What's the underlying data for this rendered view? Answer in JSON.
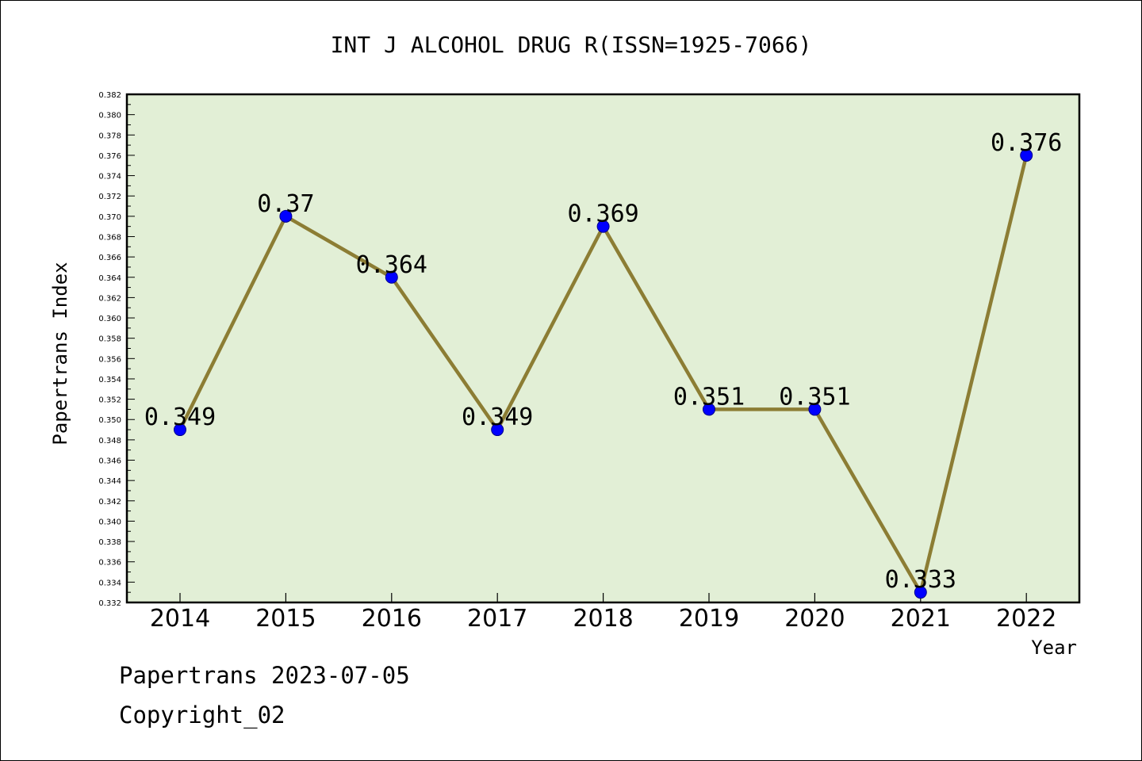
{
  "chart_data": {
    "type": "line",
    "title": "INT J ALCOHOL DRUG R(ISSN=1925-7066)",
    "xlabel": "Year",
    "ylabel": "Papertrans Index",
    "categories": [
      "2014",
      "2015",
      "2016",
      "2017",
      "2018",
      "2019",
      "2020",
      "2021",
      "2022"
    ],
    "series": [
      {
        "values": [
          0.349,
          0.37,
          0.364,
          0.349,
          0.369,
          0.351,
          0.351,
          0.333,
          0.376
        ],
        "labels": [
          "0.349",
          "0.37",
          "0.364",
          "0.349",
          "0.369",
          "0.351",
          "0.351",
          "0.333",
          "0.376"
        ]
      }
    ],
    "ylim": [
      0.332,
      0.382
    ],
    "ytick_step": 0.002,
    "ytick_labels": [
      "0.332",
      "0.334",
      "0.336",
      "0.338",
      "0.340",
      "0.342",
      "0.344",
      "0.346",
      "0.348",
      "0.350",
      "0.352",
      "0.354",
      "0.356",
      "0.358",
      "0.360",
      "0.362",
      "0.364",
      "0.366",
      "0.368",
      "0.370",
      "0.372",
      "0.374",
      "0.376",
      "0.378",
      "0.380",
      "0.382"
    ],
    "grid": false,
    "legend": "none",
    "colors": {
      "plot_background": "#e2efd6",
      "line": "#8c7d34",
      "marker": "#0000ff",
      "marker_edge": "#00008b"
    }
  },
  "footer": {
    "line1": "Papertrans 2023-07-05",
    "line2": "Copyright_02"
  }
}
